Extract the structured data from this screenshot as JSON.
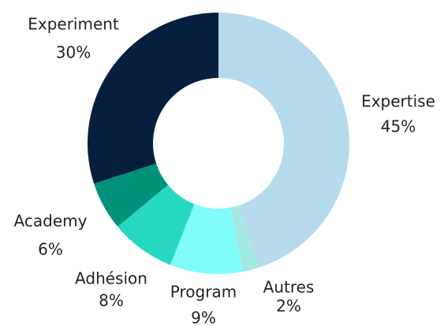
{
  "chart_data": {
    "type": "donut",
    "categories": [
      "Expertise",
      "Autres",
      "Program",
      "Adhésion",
      "Academy",
      "Experiment"
    ],
    "values": [
      45,
      2,
      9,
      8,
      6,
      30
    ],
    "value_labels": [
      "45%",
      "2%",
      "9%",
      "8%",
      "6%",
      "30%"
    ],
    "colors": [
      "#b4daec",
      "#a4e9e1",
      "#80fcfc",
      "#27d8c0",
      "#00917a",
      "#061f3f"
    ]
  }
}
